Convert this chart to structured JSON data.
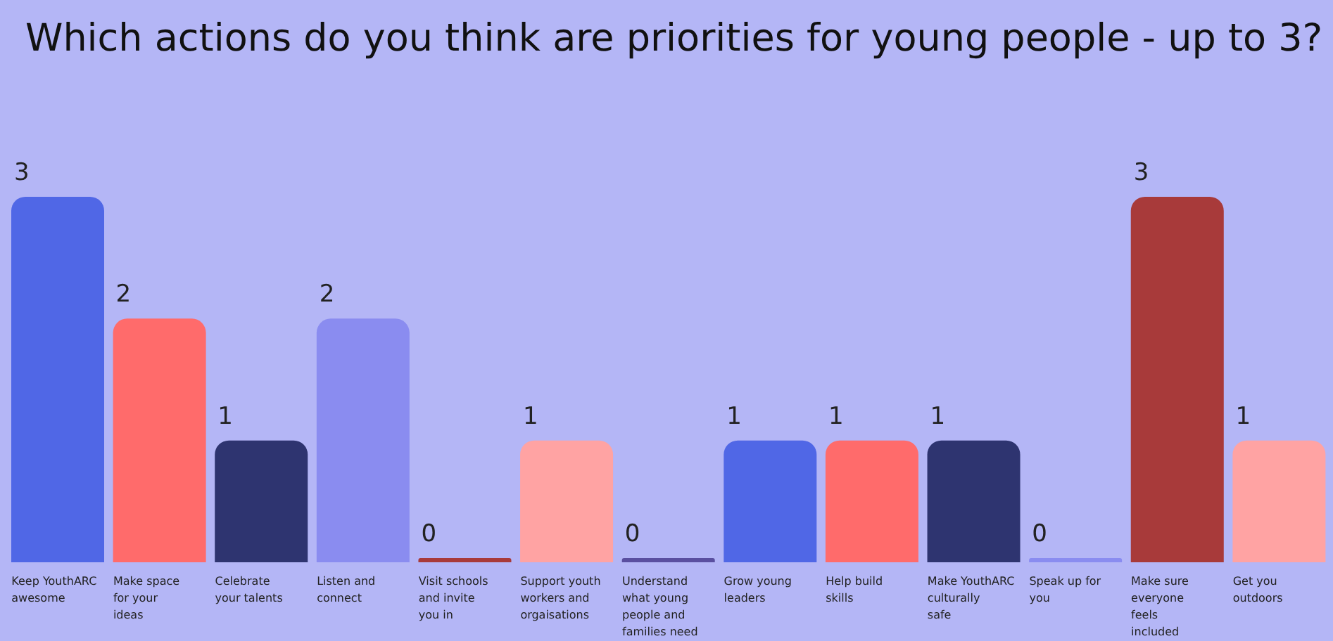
{
  "chart_data": {
    "type": "bar",
    "title": "Which actions do you think are priorities for young people - up to 3?",
    "categories": [
      "Keep YouthARC awesome",
      "Make space for your ideas",
      "Celebrate your talents",
      "Listen and connect",
      "Visit schools and invite you in",
      "Support youth workers and orgaisations",
      "Understand what young people and families need",
      "Grow young leaders",
      "Help build skills",
      "Make YouthARC culturally safe",
      "Speak up for you",
      "Make sure everyone feels included",
      "Get you outdoors"
    ],
    "values": [
      3,
      2,
      1,
      2,
      0,
      1,
      0,
      1,
      1,
      1,
      0,
      3,
      1
    ],
    "colors": [
      "#5067e6",
      "#ff6b6b",
      "#2e3470",
      "#8a8cf0",
      "#a83a3a",
      "#ffa3a3",
      "#5a4fa0",
      "#5067e6",
      "#ff6b6b",
      "#2e3470",
      "#8a8cf0",
      "#a83a3a",
      "#ffa3a3"
    ],
    "data_labels": true
  }
}
